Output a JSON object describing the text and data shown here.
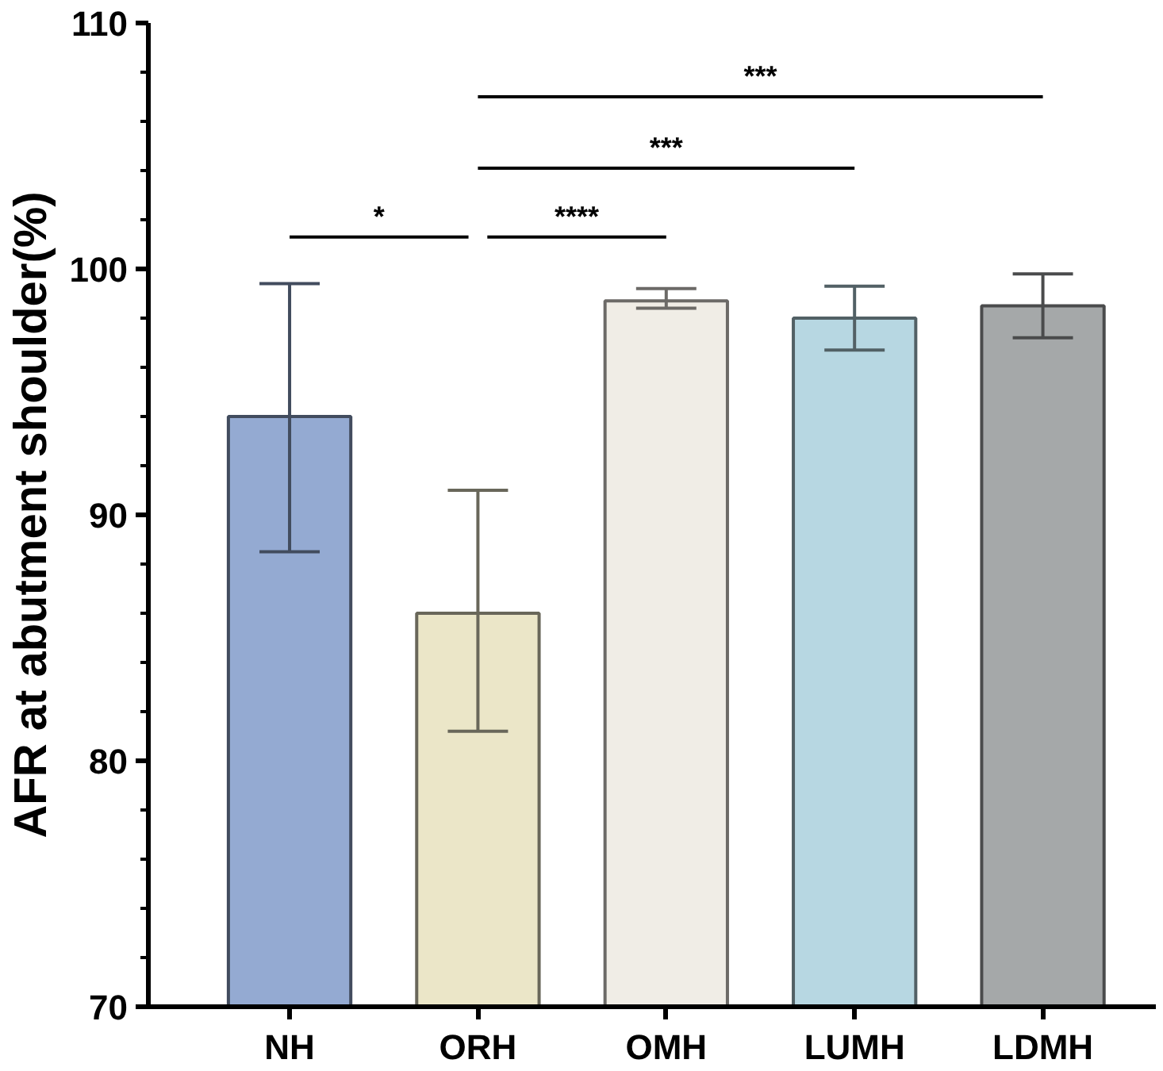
{
  "chart_data": {
    "type": "bar",
    "ylabel": "AFR at abutment shoulder(%)",
    "categories": [
      "NH",
      "ORH",
      "OMH",
      "LUMH",
      "LDMH"
    ],
    "values": [
      94.0,
      86.0,
      98.7,
      98.0,
      98.5
    ],
    "colors": [
      "#94aad2",
      "#ebe6c8",
      "#f0ede6",
      "#b7d7e2",
      "#a5a8a9"
    ],
    "errors": [
      [
        88.5,
        99.4
      ],
      [
        81.2,
        91.0
      ],
      [
        98.4,
        99.2
      ],
      [
        96.7,
        99.3
      ],
      [
        97.2,
        99.8
      ]
    ],
    "ylim": [
      70,
      110
    ],
    "yticks": [
      70,
      80,
      90,
      100,
      110
    ],
    "grid": false,
    "annotations": [
      "*",
      "****",
      "***",
      "***"
    ]
  }
}
